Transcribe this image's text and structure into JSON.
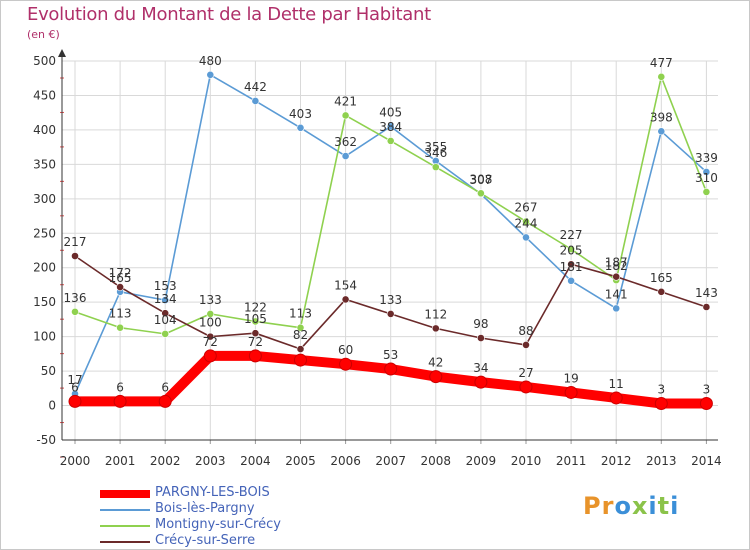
{
  "title": "Evolution du Montant de la Dette par Habitant",
  "unit_label": "(en €)",
  "brand": {
    "letters": [
      "P",
      "r",
      "o",
      "x",
      "i",
      "t",
      "i"
    ],
    "colors": [
      "#e8932a",
      "#e8932a",
      "#3b8fd8",
      "#8bc34a",
      "#3b8fd8",
      "#8bc34a",
      "#3b8fd8"
    ]
  },
  "chart_data": {
    "type": "line",
    "x": [
      "2000",
      "2001",
      "2002",
      "2003",
      "2004",
      "2005",
      "2006",
      "2007",
      "2008",
      "2009",
      "2010",
      "2011",
      "2012",
      "2013",
      "2014"
    ],
    "ylim": [
      -50,
      500
    ],
    "yticks": [
      -50,
      0,
      50,
      100,
      150,
      200,
      250,
      300,
      350,
      400,
      450,
      500
    ],
    "grid": true,
    "legend_position": "bottom-left",
    "series": [
      {
        "name": "PARGNY-LES-BOIS",
        "color": "#ff0000",
        "values": [
          6,
          6,
          6,
          72,
          72,
          66,
          60,
          53,
          42,
          34,
          27,
          19,
          11,
          3,
          3
        ],
        "labels": [
          "6",
          "6",
          "6",
          "72",
          "72",
          "",
          "60",
          "53",
          "42",
          "34",
          "27",
          "19",
          "11",
          "3",
          "3"
        ]
      },
      {
        "name": "Bois-lès-Pargny",
        "color": "#5b9bd5",
        "values": [
          17,
          165,
          153,
          480,
          442,
          403,
          362,
          405,
          355,
          307,
          244,
          181,
          141,
          398,
          339
        ],
        "labels": [
          "17",
          "165",
          "153",
          "480",
          "442",
          "403",
          "362",
          "405",
          "355",
          "307",
          "244",
          "181",
          "141",
          "398",
          "339"
        ]
      },
      {
        "name": "Montigny-sur-Crécy",
        "color": "#8fd14f",
        "values": [
          136,
          113,
          104,
          133,
          122,
          113,
          421,
          384,
          346,
          308,
          267,
          227,
          182,
          477,
          310
        ],
        "labels": [
          "136",
          "113",
          "104",
          "133",
          "122",
          "113",
          "421",
          "384",
          "346",
          "308",
          "267",
          "227",
          "182",
          "477",
          "310"
        ]
      },
      {
        "name": "Crécy-sur-Serre",
        "color": "#6b2a2a",
        "values": [
          217,
          172,
          134,
          100,
          105,
          82,
          154,
          133,
          112,
          98,
          88,
          205,
          187,
          165,
          143
        ],
        "labels": [
          "217",
          "172",
          "134",
          "100",
          "105",
          "82",
          "154",
          "133",
          "112",
          "98",
          "88",
          "205",
          "187",
          "165",
          "143"
        ]
      }
    ]
  }
}
